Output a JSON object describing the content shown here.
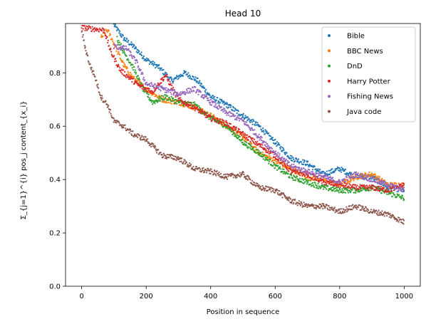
{
  "chart_data": {
    "type": "scatter",
    "title": "Head 10",
    "xlabel": "Position in sequence",
    "ylabel": "Σ_{j=1}^{i} pos_j content_{x_i}",
    "xlim": [
      -50,
      1050
    ],
    "ylim": [
      0.0,
      0.985
    ],
    "xticks": [
      0,
      200,
      400,
      600,
      800,
      1000
    ],
    "yticks": [
      0.0,
      0.2,
      0.4,
      0.6,
      0.8
    ],
    "xtick_labels": [
      "0",
      "200",
      "400",
      "600",
      "800",
      "1000"
    ],
    "ytick_labels": [
      "0.0",
      "0.2",
      "0.4",
      "0.6",
      "0.8"
    ],
    "grid": false,
    "legend_position": "top-right",
    "series": [
      {
        "name": "Bible",
        "color": "#1f77b4",
        "x": [
          100,
          130,
          160,
          200,
          240,
          280,
          320,
          360,
          400,
          450,
          500,
          550,
          600,
          650,
          700,
          750,
          800,
          850,
          900,
          950,
          1000
        ],
        "y": [
          0.98,
          0.93,
          0.9,
          0.85,
          0.82,
          0.77,
          0.8,
          0.77,
          0.71,
          0.68,
          0.64,
          0.6,
          0.54,
          0.48,
          0.46,
          0.42,
          0.44,
          0.41,
          0.41,
          0.37,
          0.36
        ]
      },
      {
        "name": "BBC News",
        "color": "#ff7f0e",
        "x": [
          60,
          80,
          100,
          130,
          160,
          200,
          250,
          300,
          350,
          400,
          450,
          500,
          550,
          600,
          650,
          700,
          750,
          800,
          850,
          900,
          950,
          1000
        ],
        "y": [
          0.93,
          0.96,
          0.91,
          0.83,
          0.78,
          0.74,
          0.7,
          0.69,
          0.67,
          0.64,
          0.6,
          0.56,
          0.5,
          0.47,
          0.44,
          0.41,
          0.4,
          0.38,
          0.41,
          0.42,
          0.38,
          0.38
        ]
      },
      {
        "name": "DnD",
        "color": "#2ca02c",
        "x": [
          110,
          130,
          160,
          190,
          220,
          260,
          300,
          350,
          400,
          450,
          500,
          550,
          600,
          650,
          700,
          750,
          800,
          850,
          900,
          950,
          1000
        ],
        "y": [
          0.93,
          0.88,
          0.82,
          0.74,
          0.69,
          0.71,
          0.69,
          0.68,
          0.63,
          0.6,
          0.54,
          0.5,
          0.45,
          0.41,
          0.39,
          0.37,
          0.36,
          0.36,
          0.37,
          0.35,
          0.33
        ]
      },
      {
        "name": "Harry Potter",
        "color": "#d62728",
        "x": [
          0,
          70,
          90,
          120,
          150,
          180,
          220,
          260,
          300,
          350,
          400,
          450,
          500,
          550,
          600,
          650,
          700,
          750,
          800,
          850,
          900,
          950,
          1000
        ],
        "y": [
          0.97,
          0.96,
          0.88,
          0.81,
          0.78,
          0.75,
          0.73,
          0.79,
          0.7,
          0.67,
          0.63,
          0.61,
          0.57,
          0.53,
          0.49,
          0.43,
          0.42,
          0.39,
          0.38,
          0.37,
          0.37,
          0.36,
          0.38
        ]
      },
      {
        "name": "Fishing News",
        "color": "#9467bd",
        "x": [
          100,
          140,
          170,
          200,
          250,
          300,
          350,
          400,
          450,
          500,
          550,
          600,
          650,
          700,
          750,
          800,
          850,
          900,
          950,
          1000
        ],
        "y": [
          0.9,
          0.89,
          0.84,
          0.76,
          0.74,
          0.72,
          0.74,
          0.69,
          0.65,
          0.62,
          0.56,
          0.5,
          0.45,
          0.43,
          0.41,
          0.39,
          0.42,
          0.4,
          0.38,
          0.36
        ]
      },
      {
        "name": "Java code",
        "color": "#8c564b",
        "x": [
          0,
          10,
          25,
          40,
          60,
          80,
          100,
          130,
          160,
          200,
          250,
          300,
          350,
          400,
          450,
          500,
          550,
          600,
          650,
          700,
          750,
          800,
          850,
          900,
          950,
          1000
        ],
        "y": [
          0.96,
          0.9,
          0.83,
          0.79,
          0.71,
          0.68,
          0.62,
          0.6,
          0.57,
          0.55,
          0.49,
          0.48,
          0.44,
          0.43,
          0.41,
          0.42,
          0.37,
          0.36,
          0.32,
          0.3,
          0.3,
          0.28,
          0.3,
          0.28,
          0.27,
          0.24
        ]
      }
    ]
  }
}
